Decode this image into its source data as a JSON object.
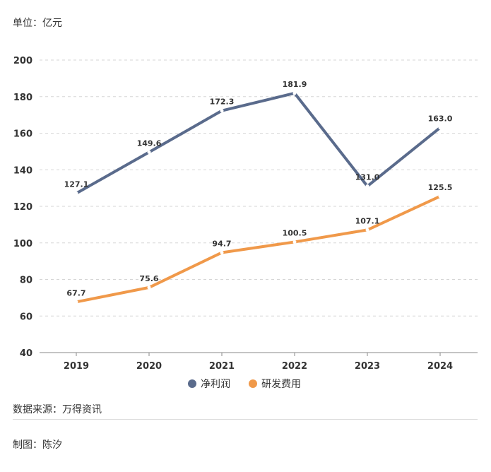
{
  "unit_label": "单位：亿元",
  "source": "数据来源：万得资讯",
  "author": "制图：陈汐",
  "colors": {
    "net_profit": "#5a6b8c",
    "rd_expense": "#f0994a",
    "grid": "#d6d6d6",
    "axis": "#888888"
  },
  "chart_data": {
    "type": "line",
    "title": "",
    "xlabel": "",
    "ylabel": "单位：亿元",
    "categories": [
      "2019",
      "2020",
      "2021",
      "2022",
      "2023",
      "2024"
    ],
    "ylim": [
      40,
      200
    ],
    "yticks": [
      40,
      60,
      80,
      100,
      120,
      140,
      160,
      180,
      200
    ],
    "grid": true,
    "legend_position": "bottom-center",
    "series": [
      {
        "name": "净利润",
        "color": "#5a6b8c",
        "values": [
          127.1,
          149.6,
          172.3,
          181.9,
          131.0,
          163.0
        ],
        "labels": [
          "127.1",
          "149.6",
          "172.3",
          "181.9",
          "131.0",
          "163.0"
        ]
      },
      {
        "name": "研发费用",
        "color": "#f0994a",
        "values": [
          67.7,
          75.6,
          94.7,
          100.5,
          107.1,
          125.5
        ],
        "labels": [
          "67.7",
          "75.6",
          "94.7",
          "100.5",
          "107.1",
          "125.5"
        ]
      }
    ]
  }
}
